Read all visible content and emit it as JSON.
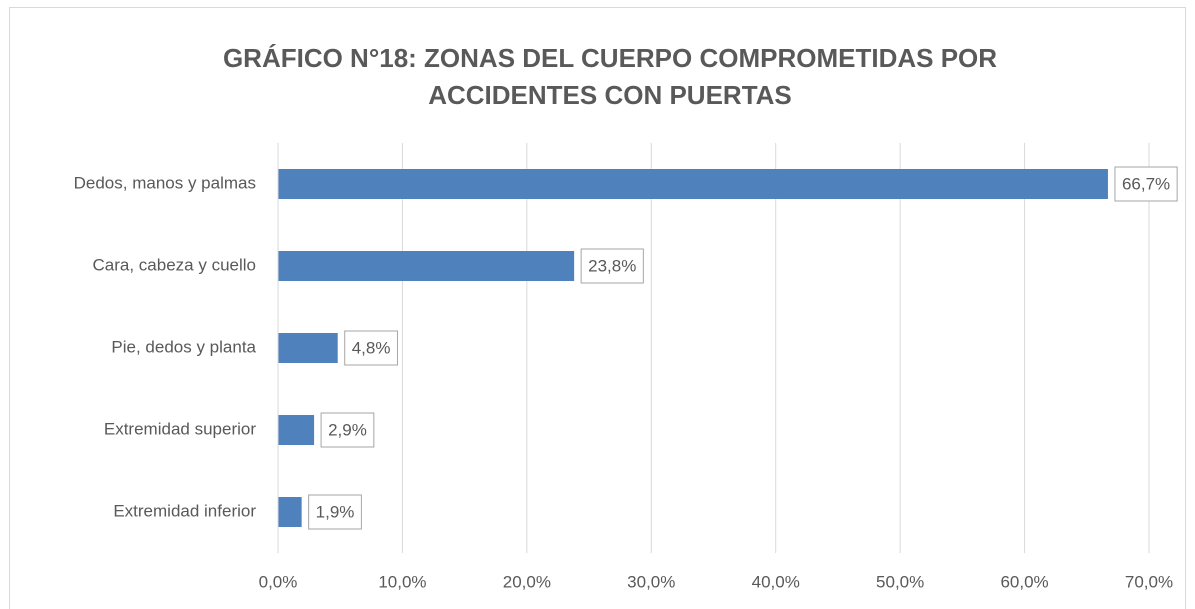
{
  "chart_data": {
    "type": "bar",
    "orientation": "horizontal",
    "title": [
      "GRÁFICO N°18: ZONAS DEL CUERPO COMPROMETIDAS POR",
      "ACCIDENTES CON PUERTAS"
    ],
    "categories": [
      "Dedos, manos y palmas",
      "Cara, cabeza y cuello",
      "Pie, dedos y planta",
      "Extremidad superior",
      "Extremidad inferior"
    ],
    "values": [
      66.7,
      23.8,
      4.8,
      2.9,
      1.9
    ],
    "value_labels": [
      "66,7%",
      "23,8%",
      "4,8%",
      "2,9%",
      "1,9%"
    ],
    "color": "#4f81bd",
    "xlim": [
      0,
      70
    ],
    "xticks": [
      {
        "value": 0,
        "label": "0,0%"
      },
      {
        "value": 10,
        "label": "10,0%"
      },
      {
        "value": 20,
        "label": "20,0%"
      },
      {
        "value": 30,
        "label": "30,0%"
      },
      {
        "value": 40,
        "label": "40,0%"
      },
      {
        "value": 50,
        "label": "50,0%"
      },
      {
        "value": 60,
        "label": "60,0%"
      },
      {
        "value": 70,
        "label": "70,0%"
      }
    ],
    "grid": true
  }
}
